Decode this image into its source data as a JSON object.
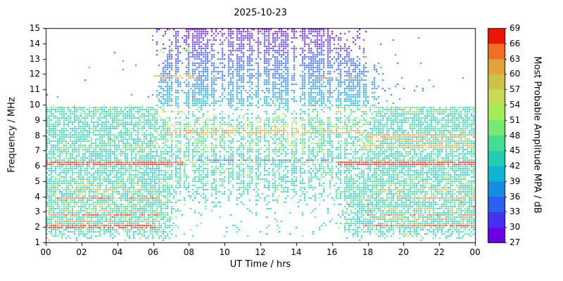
{
  "chart_data": {
    "type": "heatmap",
    "title": "2025-10-23",
    "xlabel": "UT Time / hrs",
    "ylabel": "Frequency / MHz",
    "xlim": [
      0,
      24
    ],
    "ylim": [
      1,
      15
    ],
    "xtick_labels": [
      "00",
      "02",
      "04",
      "06",
      "08",
      "10",
      "12",
      "14",
      "16",
      "18",
      "20",
      "22",
      "00"
    ],
    "xtick_values": [
      0,
      2,
      4,
      6,
      8,
      10,
      12,
      14,
      16,
      18,
      20,
      22,
      24
    ],
    "ytick_labels": [
      "1",
      "2",
      "3",
      "4",
      "5",
      "6",
      "7",
      "8",
      "9",
      "10",
      "11",
      "12",
      "13",
      "14",
      "15"
    ],
    "ytick_values": [
      1,
      2,
      3,
      4,
      5,
      6,
      7,
      8,
      9,
      10,
      11,
      12,
      13,
      14,
      15
    ],
    "grid": false,
    "colorbar": {
      "label": "Most Probable Amplitude MPA / dB",
      "min": 27,
      "max": 69,
      "tick_labels": [
        "27",
        "30",
        "33",
        "36",
        "39",
        "42",
        "45",
        "48",
        "51",
        "54",
        "57",
        "60",
        "63",
        "66",
        "69"
      ],
      "tick_values": [
        27,
        30,
        33,
        36,
        39,
        42,
        45,
        48,
        51,
        54,
        57,
        60,
        63,
        66,
        69
      ],
      "segment_colors": [
        "#6a00e6",
        "#4433ee",
        "#2a60f0",
        "#1a8ce0",
        "#0fb4d2",
        "#24ccb0",
        "#46dc92",
        "#76e874",
        "#a4ec5c",
        "#c6dc52",
        "#cec24a",
        "#e2a23c",
        "#ee7026",
        "#ea1800"
      ]
    },
    "features": {
      "description": "HF noise spectrogram: night hours densely filled 1.5-10 MHz with cyan/green most-probable amplitudes (~39-48 dB) and red broadcast-band interference streaks; daytime (~05:30-18:00 UT) adds a dense blue/purple band 10-15 MHz (~27-39 dB) with vertical sounding gaps, while 2-5 MHz thins out from D-layer absorption.",
      "day_start_hr": 5.6,
      "day_end_hr": 17.9,
      "night_max_freq_mhz": 10,
      "day_max_freq_mhz": 15,
      "base_amp_db": 43,
      "day_highband_amp_at_10mhz_db": 40.5,
      "day_highband_amp_slope_db_per_mhz": -2.35,
      "interference_streaks": [
        {
          "f": 2.15,
          "t0": 0,
          "t1": 6.3,
          "amp": 67,
          "p": 0.75,
          "w": 0.1
        },
        {
          "f": 2.5,
          "t0": 0,
          "t1": 6.1,
          "amp": 63,
          "p": 0.5,
          "w": 0.08
        },
        {
          "f": 2.85,
          "t0": 0,
          "t1": 6.3,
          "amp": 66,
          "p": 0.7,
          "w": 0.09
        },
        {
          "f": 3.2,
          "t0": 0,
          "t1": 5.9,
          "amp": 60,
          "p": 0.45,
          "w": 0.08
        },
        {
          "f": 3.55,
          "t0": 0,
          "t1": 5.6,
          "amp": 57,
          "p": 0.35,
          "w": 0.08
        },
        {
          "f": 3.95,
          "t0": 0,
          "t1": 6.3,
          "amp": 65,
          "p": 0.65,
          "w": 0.09
        },
        {
          "f": 4.3,
          "t0": 0,
          "t1": 5.6,
          "amp": 56,
          "p": 0.35,
          "w": 0.07
        },
        {
          "f": 4.55,
          "t0": 0,
          "t1": 6.1,
          "amp": 61,
          "p": 0.5,
          "w": 0.08
        },
        {
          "f": 4.85,
          "t0": 0,
          "t1": 5.6,
          "amp": 56,
          "p": 0.4,
          "w": 0.07
        },
        {
          "f": 5.3,
          "t0": 0,
          "t1": 5.2,
          "amp": 53,
          "p": 0.3,
          "w": 0.07
        },
        {
          "f": 6.28,
          "t0": 0,
          "t1": 7.6,
          "amp": 67,
          "p": 0.85,
          "w": 0.12
        },
        {
          "f": 7.25,
          "t0": 0,
          "t1": 6.1,
          "amp": 59,
          "p": 0.45,
          "w": 0.08
        },
        {
          "f": 10.0,
          "t0": 0.3,
          "t1": 5.6,
          "amp": 55,
          "p": 0.15,
          "w": 0.12
        },
        {
          "f": 6.3,
          "t0": 7.6,
          "t1": 16.2,
          "amp": 57,
          "p": 0.35,
          "w": 0.09
        },
        {
          "f": 6.45,
          "t0": 8.0,
          "t1": 16.0,
          "amp": 33,
          "p": 0.6,
          "w": 0.08
        },
        {
          "f": 8.3,
          "t0": 6.4,
          "t1": 17.5,
          "amp": 62,
          "p": 0.55,
          "w": 0.1
        },
        {
          "f": 8.6,
          "t0": 6.6,
          "t1": 17.0,
          "amp": 54,
          "p": 0.3,
          "w": 0.08
        },
        {
          "f": 9.6,
          "t0": 5.9,
          "t1": 8.6,
          "amp": 58,
          "p": 0.4,
          "w": 0.09
        },
        {
          "f": 11.9,
          "t0": 5.9,
          "t1": 8.4,
          "amp": 62,
          "p": 0.4,
          "w": 0.1
        },
        {
          "f": 13.7,
          "t0": 6.3,
          "t1": 8.1,
          "amp": 52,
          "p": 0.22,
          "w": 0.09
        },
        {
          "f": 14.85,
          "t0": 9.8,
          "t1": 11.4,
          "amp": 65,
          "p": 0.3,
          "w": 0.1
        },
        {
          "f": 11.85,
          "t0": 14.9,
          "t1": 17.7,
          "amp": 63,
          "p": 0.45,
          "w": 0.1
        },
        {
          "f": 9.6,
          "t0": 15.6,
          "t1": 22.6,
          "amp": 59,
          "p": 0.5,
          "w": 0.09
        },
        {
          "f": 9.95,
          "t0": 16.1,
          "t1": 21.2,
          "amp": 56,
          "p": 0.3,
          "w": 0.08
        },
        {
          "f": 6.28,
          "t0": 16.2,
          "t1": 24,
          "amp": 67,
          "p": 0.85,
          "w": 0.12
        },
        {
          "f": 7.35,
          "t0": 17.6,
          "t1": 24,
          "amp": 61,
          "p": 0.55,
          "w": 0.09
        },
        {
          "f": 7.7,
          "t0": 18.1,
          "t1": 24,
          "amp": 62,
          "p": 0.55,
          "w": 0.09
        },
        {
          "f": 8.05,
          "t0": 17.9,
          "t1": 24,
          "amp": 63,
          "p": 0.6,
          "w": 0.09
        },
        {
          "f": 2.2,
          "t0": 17.7,
          "t1": 24,
          "amp": 66,
          "p": 0.75,
          "w": 0.1
        },
        {
          "f": 2.55,
          "t0": 18.1,
          "t1": 24,
          "amp": 63,
          "p": 0.5,
          "w": 0.08
        },
        {
          "f": 2.9,
          "t0": 17.9,
          "t1": 24,
          "amp": 65,
          "p": 0.65,
          "w": 0.09
        },
        {
          "f": 3.3,
          "t0": 18.3,
          "t1": 24,
          "amp": 59,
          "p": 0.45,
          "w": 0.08
        },
        {
          "f": 3.95,
          "t0": 17.9,
          "t1": 24,
          "amp": 63,
          "p": 0.6,
          "w": 0.09
        },
        {
          "f": 4.55,
          "t0": 17.7,
          "t1": 24,
          "amp": 60,
          "p": 0.5,
          "w": 0.08
        },
        {
          "f": 5.0,
          "t0": 18.1,
          "t1": 24,
          "amp": 57,
          "p": 0.4,
          "w": 0.08
        },
        {
          "f": 5.35,
          "t0": 18.4,
          "t1": 24,
          "amp": 54,
          "p": 0.3,
          "w": 0.07
        }
      ]
    }
  }
}
